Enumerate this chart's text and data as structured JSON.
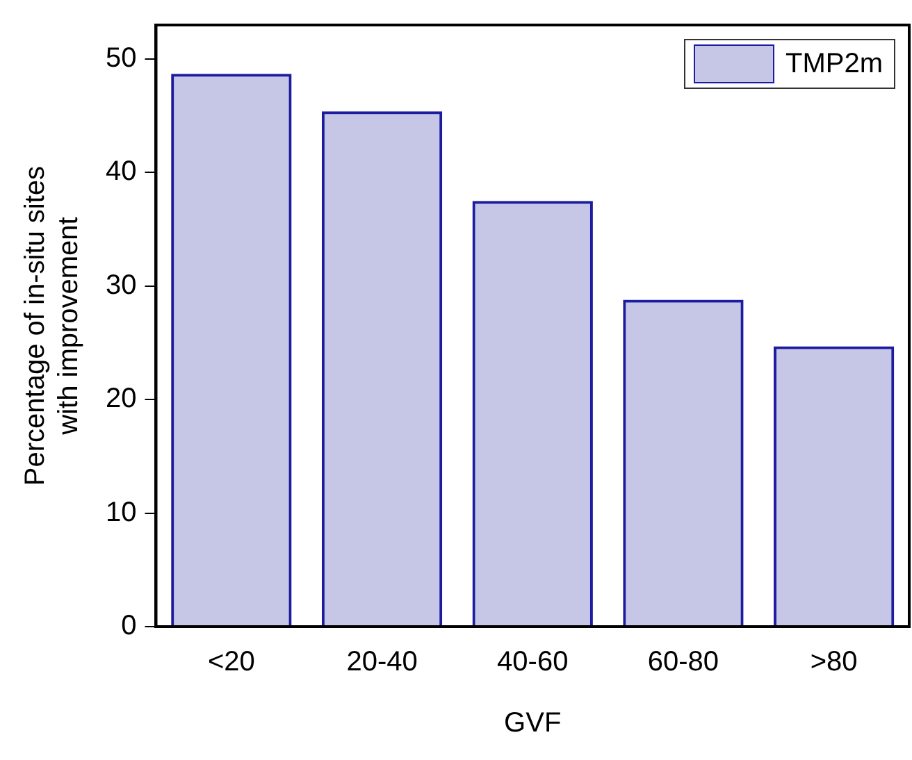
{
  "chart_data": {
    "type": "bar",
    "xlabel": "GVF",
    "ylabel": "Percentage of in-situ sites with improvement",
    "categories": [
      "<20",
      "20-40",
      "40-60",
      "60-80",
      ">80"
    ],
    "series": [
      {
        "name": "TMP2m",
        "color": "#1c1c9e",
        "values": [
          48.7,
          45.4,
          37.5,
          28.8,
          24.7
        ]
      }
    ],
    "ylim": [
      0,
      53
    ],
    "yticks": [
      0,
      10,
      20,
      30,
      40,
      50
    ],
    "grid": false,
    "legend": "top right"
  }
}
